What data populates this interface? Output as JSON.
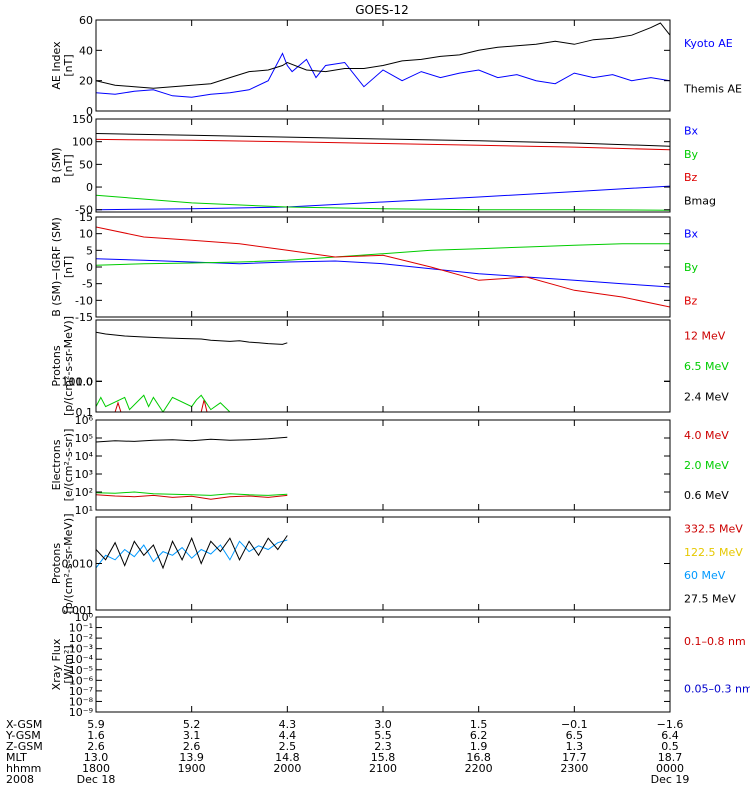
{
  "title": "GOES-12",
  "chart_data": [
    {
      "type": "line",
      "panel": "ae-index",
      "ylabel": [
        "AE Index",
        "[nT]"
      ],
      "ylim": [
        0,
        60
      ],
      "yticks": [
        0,
        20,
        40,
        60
      ],
      "legend_placement": "right",
      "series": [
        {
          "name": "Kyoto AE",
          "color": "#0000ff",
          "x": [
            18.0,
            18.2,
            18.4,
            18.6,
            18.8,
            19.0,
            19.2,
            19.4,
            19.6,
            19.8,
            19.95,
            20.0,
            20.05,
            20.2,
            20.3,
            20.4,
            20.6,
            20.8,
            21.0,
            21.2,
            21.4,
            21.6,
            21.8,
            22.0,
            22.2,
            22.4,
            22.6,
            22.8,
            23.0,
            23.2,
            23.4,
            23.6,
            23.8,
            24.0
          ],
          "values": [
            12,
            11,
            13,
            14,
            10,
            9,
            11,
            12,
            14,
            20,
            38,
            30,
            26,
            34,
            22,
            30,
            32,
            16,
            27,
            20,
            26,
            22,
            25,
            27,
            22,
            24,
            20,
            18,
            25,
            22,
            24,
            20,
            22,
            20
          ]
        },
        {
          "name": "Themis AE",
          "color": "#000000",
          "x": [
            18.0,
            18.2,
            18.4,
            18.6,
            18.8,
            19.0,
            19.2,
            19.4,
            19.6,
            19.8,
            19.95,
            20.0,
            20.2,
            20.4,
            20.6,
            20.8,
            21.0,
            21.2,
            21.4,
            21.6,
            21.8,
            22.0,
            22.2,
            22.4,
            22.6,
            22.8,
            23.0,
            23.2,
            23.4,
            23.6,
            23.8,
            23.9,
            24.0
          ],
          "values": [
            20,
            17,
            16,
            15,
            16,
            17,
            18,
            22,
            26,
            27,
            30,
            32,
            27,
            26,
            28,
            28,
            30,
            33,
            34,
            36,
            37,
            40,
            42,
            43,
            44,
            46,
            44,
            47,
            48,
            50,
            55,
            58,
            50
          ]
        }
      ]
    },
    {
      "type": "line",
      "panel": "b-sm",
      "ylabel": [
        "B (SM)",
        "[nT]"
      ],
      "ylim": [
        -55,
        150
      ],
      "yticks": [
        -50,
        0,
        50,
        100,
        150
      ],
      "series": [
        {
          "name": "Bx",
          "color": "#0000ff",
          "x": [
            18.0,
            19.0,
            20.0,
            21.0,
            22.0,
            23.0,
            24.0
          ],
          "values": [
            -50,
            -48,
            -44,
            -33,
            -22,
            -10,
            2
          ]
        },
        {
          "name": "By",
          "color": "#00cc00",
          "x": [
            18.0,
            19.0,
            20.0,
            21.0,
            22.0,
            23.0,
            24.0
          ],
          "values": [
            -18,
            -35,
            -44,
            -48,
            -50,
            -50,
            -51
          ]
        },
        {
          "name": "Bz",
          "color": "#dd0000",
          "x": [
            18.0,
            19.0,
            20.0,
            21.0,
            22.0,
            23.0,
            24.0
          ],
          "values": [
            105,
            103,
            100,
            96,
            92,
            88,
            82
          ]
        },
        {
          "name": "Bmag",
          "color": "#000000",
          "x": [
            18.0,
            19.0,
            20.0,
            21.0,
            22.0,
            23.0,
            24.0
          ],
          "values": [
            118,
            114,
            110,
            106,
            102,
            97,
            90
          ]
        }
      ]
    },
    {
      "type": "line",
      "panel": "b-minus-igrf",
      "ylabel": [
        "B (SM)−IGRF (SM)",
        "[nT]"
      ],
      "ylim": [
        -15,
        15
      ],
      "yticks": [
        -15,
        -10,
        -5,
        0,
        5,
        10,
        15
      ],
      "series": [
        {
          "name": "Bx",
          "color": "#0000ff",
          "x": [
            18.0,
            18.5,
            19.0,
            19.5,
            20.0,
            20.5,
            21.0,
            21.5,
            22.0,
            22.5,
            23.0,
            23.5,
            24.0
          ],
          "values": [
            2.5,
            2.0,
            1.5,
            1.0,
            1.5,
            1.8,
            1.0,
            -0.5,
            -2,
            -3,
            -4,
            -5,
            -6
          ]
        },
        {
          "name": "By",
          "color": "#00cc00",
          "x": [
            18.0,
            18.5,
            19.0,
            19.5,
            20.0,
            20.5,
            21.0,
            21.5,
            22.0,
            22.5,
            23.0,
            23.5,
            24.0
          ],
          "values": [
            0.5,
            1,
            1.2,
            1.5,
            2,
            3,
            4,
            5,
            5.5,
            6,
            6.5,
            7,
            7
          ]
        },
        {
          "name": "Bz",
          "color": "#dd0000",
          "x": [
            18.0,
            18.5,
            19.0,
            19.5,
            20.0,
            20.5,
            21.0,
            21.5,
            22.0,
            22.5,
            23.0,
            23.5,
            24.0
          ],
          "values": [
            12,
            9,
            8,
            7,
            5,
            3,
            3.5,
            0,
            -4,
            -3,
            -7,
            -9,
            -12
          ]
        }
      ]
    },
    {
      "type": "line",
      "panel": "protons-1",
      "ylabel": [
        "Protons",
        "[p/(cm²-s-sr-MeV)]"
      ],
      "yscale": "log",
      "ylim": [
        0.1,
        100
      ],
      "yticks": [
        "0.1",
        "1.0",
        "10.0",
        "100.0"
      ],
      "series": [
        {
          "name": "12 MeV",
          "color": "#cc0000",
          "x": [
            18.2,
            18.23,
            18.26,
            19.1,
            19.13,
            19.16
          ],
          "values": [
            0.1,
            0.2,
            0.1,
            0.1,
            0.25,
            0.1
          ]
        },
        {
          "name": "6.5 MeV",
          "color": "#00cc00",
          "x": [
            18.0,
            18.05,
            18.1,
            18.3,
            18.35,
            18.5,
            18.55,
            18.6,
            18.7,
            18.8,
            19.0,
            19.05,
            19.1,
            19.2,
            19.3,
            19.4
          ],
          "values": [
            0.15,
            0.3,
            0.15,
            0.3,
            0.12,
            0.35,
            0.15,
            0.3,
            0.1,
            0.3,
            0.15,
            0.25,
            0.35,
            0.12,
            0.2,
            0.1
          ]
        },
        {
          "name": "2.4 MeV",
          "color": "#000000",
          "x": [
            18.0,
            18.1,
            18.3,
            18.5,
            18.7,
            18.9,
            19.1,
            19.2,
            19.4,
            19.5,
            19.6,
            19.7,
            19.8,
            19.95,
            20.0
          ],
          "values": [
            40,
            35,
            30,
            28,
            26,
            25,
            24,
            22,
            20,
            21,
            19,
            18,
            17,
            16,
            18
          ]
        }
      ]
    },
    {
      "type": "line",
      "panel": "electrons",
      "ylabel": [
        "Electrons",
        "[e/(cm²-s-sr)]"
      ],
      "yscale": "log",
      "ylim": [
        10,
        1000000
      ],
      "yticks": [
        "10¹",
        "10²",
        "10³",
        "10⁴",
        "10⁵",
        "10⁶"
      ],
      "series": [
        {
          "name": "4.0 MeV",
          "color": "#cc0000",
          "x": [
            18.0,
            18.2,
            18.4,
            18.6,
            18.8,
            19.0,
            19.2,
            19.4,
            19.6,
            19.8,
            20.0
          ],
          "values": [
            70,
            60,
            55,
            65,
            50,
            58,
            40,
            55,
            60,
            50,
            65
          ]
        },
        {
          "name": "2.0 MeV",
          "color": "#00cc00",
          "x": [
            18.0,
            18.2,
            18.4,
            18.6,
            18.8,
            19.0,
            19.2,
            19.4,
            19.6,
            19.8,
            20.0
          ],
          "values": [
            90,
            85,
            100,
            80,
            75,
            70,
            65,
            80,
            70,
            65,
            75
          ]
        },
        {
          "name": "0.6 MeV",
          "color": "#000000",
          "x": [
            18.0,
            18.2,
            18.4,
            18.6,
            18.8,
            19.0,
            19.2,
            19.4,
            19.6,
            19.8,
            20.0
          ],
          "values": [
            60000,
            70000,
            65000,
            75000,
            80000,
            70000,
            85000,
            75000,
            80000,
            90000,
            110000
          ]
        }
      ]
    },
    {
      "type": "line",
      "panel": "protons-2",
      "ylabel": [
        "Protons",
        "[p/(cm²-s-sr-MeV)]"
      ],
      "yscale": "log",
      "ylim": [
        0.001,
        0.1
      ],
      "yticks": [
        "0.001",
        "0.010"
      ],
      "series": [
        {
          "name": "332.5 MeV",
          "color": "#cc0000",
          "x": [],
          "values": []
        },
        {
          "name": "122.5 MeV",
          "color": "#e6c800",
          "x": [],
          "values": []
        },
        {
          "name": "60 MeV",
          "color": "#0099ff",
          "x": [
            18.0,
            18.1,
            18.2,
            18.3,
            18.4,
            18.5,
            18.6,
            18.7,
            18.8,
            18.9,
            19.0,
            19.1,
            19.2,
            19.3,
            19.4,
            19.5,
            19.6,
            19.7,
            19.8,
            19.9,
            20.0
          ],
          "values": [
            0.008,
            0.015,
            0.012,
            0.02,
            0.014,
            0.025,
            0.011,
            0.018,
            0.015,
            0.022,
            0.013,
            0.02,
            0.016,
            0.025,
            0.012,
            0.03,
            0.018,
            0.024,
            0.02,
            0.028,
            0.032
          ]
        },
        {
          "name": "27.5 MeV",
          "color": "#000000",
          "x": [
            18.0,
            18.1,
            18.2,
            18.3,
            18.4,
            18.5,
            18.6,
            18.7,
            18.8,
            18.9,
            19.0,
            19.1,
            19.2,
            19.3,
            19.4,
            19.5,
            19.6,
            19.7,
            19.8,
            19.9,
            20.0
          ],
          "values": [
            0.02,
            0.012,
            0.028,
            0.009,
            0.03,
            0.015,
            0.025,
            0.008,
            0.03,
            0.012,
            0.035,
            0.01,
            0.03,
            0.018,
            0.035,
            0.012,
            0.03,
            0.015,
            0.035,
            0.02,
            0.04
          ]
        }
      ]
    },
    {
      "type": "line",
      "panel": "xray",
      "ylabel": [
        "Xray Flux",
        "[W/m²]"
      ],
      "yscale": "log",
      "ylim": [
        1e-09,
        1
      ],
      "yticks": [
        "10⁻⁹",
        "10⁻⁸",
        "10⁻⁷",
        "10⁻⁶",
        "10⁻⁵",
        "10⁻⁴",
        "10⁻³",
        "10⁻²",
        "10⁻¹",
        "10⁰"
      ],
      "series": [
        {
          "name": "0.1–0.8 nm",
          "color": "#cc0000",
          "x": [],
          "values": []
        },
        {
          "name": "0.05–0.3 nm",
          "color": "#0000cc",
          "x": [],
          "values": []
        }
      ]
    }
  ],
  "xaxis": {
    "xlim": [
      18.0,
      24.0
    ],
    "ticks": [
      18,
      19,
      20,
      21,
      22,
      23,
      24
    ],
    "row_labels": [
      "X-GSM",
      "Y-GSM",
      "Z-GSM",
      "MLT",
      "hhmm",
      "2008"
    ],
    "columns": [
      [
        "5.9",
        "1.6",
        "2.6",
        "13.0",
        "1800",
        "Dec 18"
      ],
      [
        "5.2",
        "3.1",
        "2.6",
        "13.9",
        "1900",
        ""
      ],
      [
        "4.3",
        "4.4",
        "2.5",
        "14.8",
        "2000",
        ""
      ],
      [
        "3.0",
        "5.5",
        "2.3",
        "15.8",
        "2100",
        ""
      ],
      [
        "1.5",
        "6.2",
        "1.9",
        "16.8",
        "2200",
        ""
      ],
      [
        "−0.1",
        "6.5",
        "1.3",
        "17.7",
        "2300",
        ""
      ],
      [
        "−1.6",
        "6.4",
        "0.5",
        "18.7",
        "0000",
        "Dec 19"
      ]
    ]
  }
}
